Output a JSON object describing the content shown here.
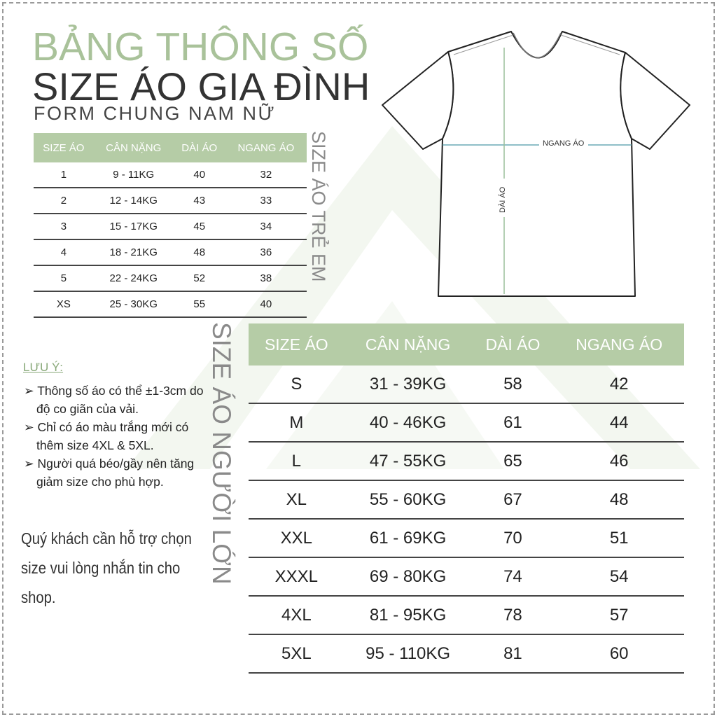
{
  "title": {
    "line1": "BẢNG THÔNG SỐ",
    "line2": "SIZE ÁO GIA ĐÌNH",
    "line3": "FORM CHUNG NAM NỮ"
  },
  "colors": {
    "accent_green": "#b5cca6",
    "title_green": "#a9c29a",
    "measure_line": "#6aaab5"
  },
  "kids_table": {
    "side_label": "SIZE ÁO TRẺ EM",
    "headers": [
      "SIZE ÁO",
      "CÂN NẶNG",
      "DÀI ÁO",
      "NGANG ÁO"
    ],
    "rows": [
      [
        "1",
        "9 - 11KG",
        "40",
        "32"
      ],
      [
        "2",
        "12 - 14KG",
        "43",
        "33"
      ],
      [
        "3",
        "15 - 17KG",
        "45",
        "34"
      ],
      [
        "4",
        "18 - 21KG",
        "48",
        "36"
      ],
      [
        "5",
        "22 - 24KG",
        "52",
        "38"
      ],
      [
        "XS",
        "25 - 30KG",
        "55",
        "40"
      ]
    ]
  },
  "adult_table": {
    "side_label": "SIZE ÁO NGƯỜI LỚN",
    "headers": [
      "SIZE ÁO",
      "CÂN NẶNG",
      "DÀI ÁO",
      "NGANG ÁO"
    ],
    "rows": [
      [
        "S",
        "31 - 39KG",
        "58",
        "42"
      ],
      [
        "M",
        "40 - 46KG",
        "61",
        "44"
      ],
      [
        "L",
        "47 - 55KG",
        "65",
        "46"
      ],
      [
        "XL",
        "55 - 60KG",
        "67",
        "48"
      ],
      [
        "XXL",
        "61 - 69KG",
        "70",
        "51"
      ],
      [
        "XXXL",
        "69 - 80KG",
        "74",
        "54"
      ],
      [
        "4XL",
        "81 - 95KG",
        "78",
        "57"
      ],
      [
        "5XL",
        "95 - 110KG",
        "81",
        "60"
      ]
    ]
  },
  "notes": {
    "title": "LƯU Ý:",
    "items": [
      "➢ Thông số áo có thể ±1-3cm do độ co giãn của vải.",
      "➢ Chỉ có áo màu trắng mới có thêm size 4XL & 5XL.",
      "➢ Người quá béo/gầy nên tăng giảm size cho phù hợp."
    ],
    "contact": "Quý khách cần hỗ trợ chọn size vui lòng nhắn tin cho shop."
  },
  "diagram": {
    "width_label": "NGANG ÁO",
    "length_label": "DÀI ÁO"
  }
}
